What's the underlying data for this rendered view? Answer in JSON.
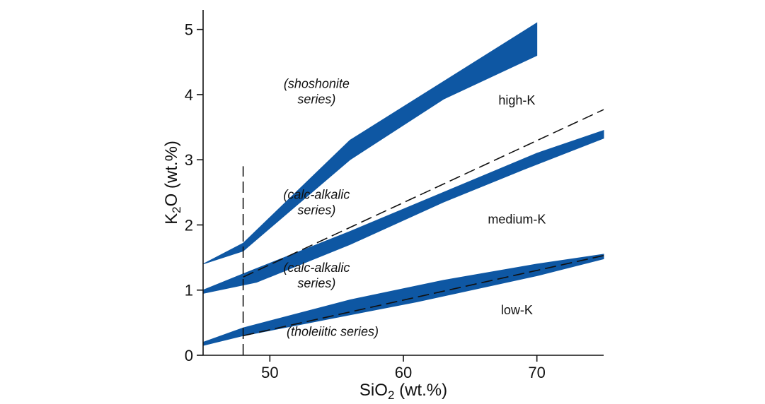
{
  "chart_data": {
    "type": "area",
    "xlabel": "SiO₂ (wt.%)",
    "ylabel": "K₂O (wt.%)",
    "xlim": [
      45,
      75
    ],
    "ylim": [
      0,
      5.3
    ],
    "x_ticks": [
      50,
      60,
      70
    ],
    "y_ticks": [
      0,
      1,
      2,
      3,
      4,
      5
    ],
    "grid": false,
    "color": "#0e57a3",
    "bands": [
      {
        "upper": [
          [
            45,
            1.4
          ],
          [
            48,
            1.72
          ],
          [
            56,
            3.3
          ],
          [
            70,
            5.1
          ]
        ],
        "lower": [
          [
            45,
            1.4
          ],
          [
            48,
            1.6
          ],
          [
            56,
            3.0
          ],
          [
            63,
            3.93
          ],
          [
            70,
            4.6
          ]
        ]
      },
      {
        "upper": [
          [
            45,
            1.0
          ],
          [
            48,
            1.25
          ],
          [
            56,
            1.9
          ],
          [
            63,
            2.5
          ],
          [
            70,
            3.1
          ],
          [
            75,
            3.45
          ]
        ],
        "lower": [
          [
            45,
            0.95
          ],
          [
            49,
            1.12
          ],
          [
            56,
            1.7
          ],
          [
            63,
            2.35
          ],
          [
            69,
            2.85
          ],
          [
            75,
            3.33
          ]
        ]
      },
      {
        "upper": [
          [
            45,
            0.2
          ],
          [
            48,
            0.42
          ],
          [
            56,
            0.85
          ],
          [
            63,
            1.15
          ],
          [
            70,
            1.4
          ],
          [
            75,
            1.55
          ]
        ],
        "lower": [
          [
            45,
            0.15
          ],
          [
            48,
            0.3
          ],
          [
            56,
            0.62
          ],
          [
            61,
            0.82
          ],
          [
            70,
            1.22
          ],
          [
            75,
            1.48
          ]
        ]
      }
    ],
    "dashed_lines": [
      {
        "points": [
          [
            48,
            1.2
          ],
          [
            75,
            3.77
          ]
        ]
      },
      {
        "points": [
          [
            48,
            0.3
          ],
          [
            75,
            1.53
          ]
        ]
      },
      {
        "points": [
          [
            48,
            0.0
          ],
          [
            48,
            2.9
          ]
        ]
      }
    ],
    "annotations": [
      {
        "lines": [
          "(shoshonite",
          "series)"
        ],
        "x": 53.5,
        "y": 4.1,
        "italic": true
      },
      {
        "lines": [
          "high-K"
        ],
        "x": 68.5,
        "y": 3.85,
        "italic": false
      },
      {
        "lines": [
          "(calc-alkalic",
          "series)"
        ],
        "x": 53.5,
        "y": 2.4,
        "italic": true
      },
      {
        "lines": [
          "medium-K"
        ],
        "x": 68.5,
        "y": 2.02,
        "italic": false
      },
      {
        "lines": [
          "(calc-alkalic",
          "series)"
        ],
        "x": 53.5,
        "y": 1.28,
        "italic": true
      },
      {
        "lines": [
          "low-K"
        ],
        "x": 68.5,
        "y": 0.63,
        "italic": false
      },
      {
        "lines": [
          "(tholeiitic series)"
        ],
        "x": 54.7,
        "y": 0.3,
        "italic": true
      }
    ]
  }
}
